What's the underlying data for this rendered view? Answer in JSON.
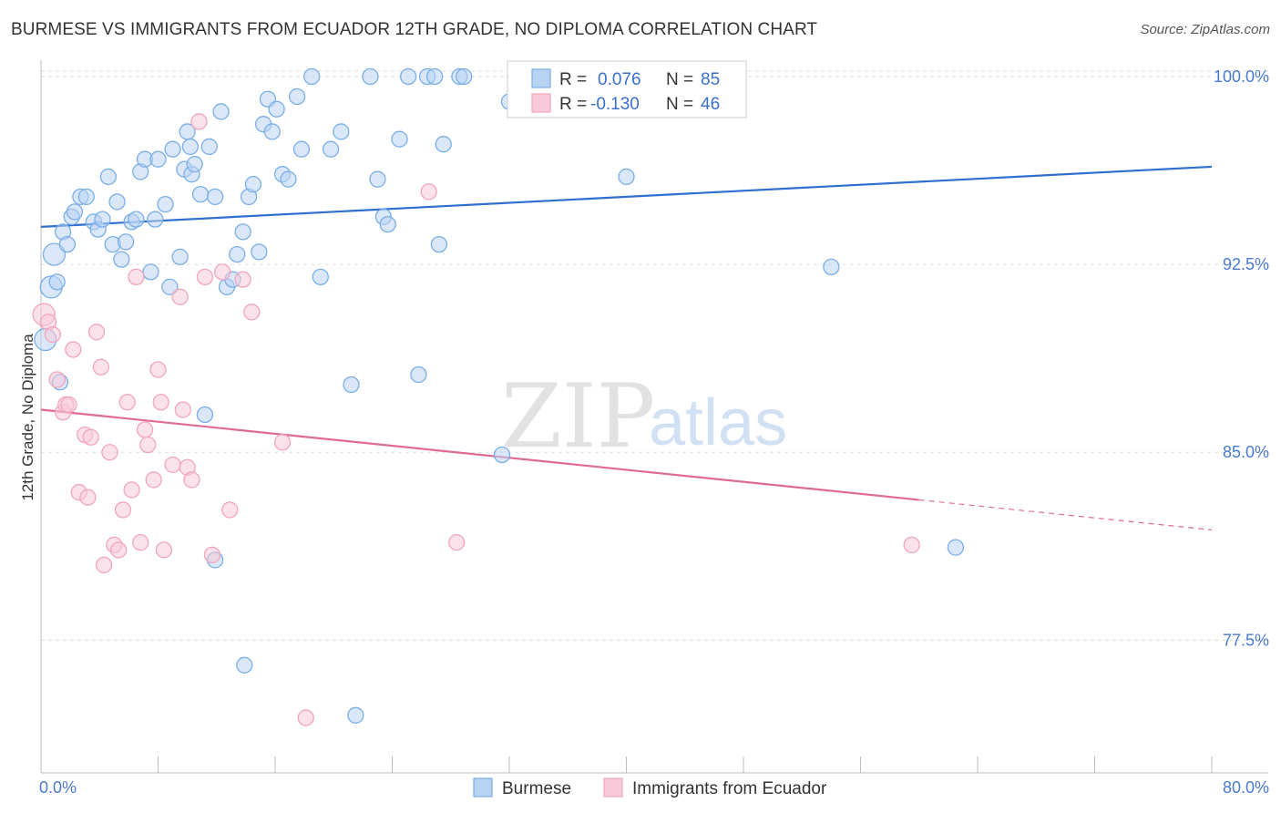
{
  "title": "BURMESE VS IMMIGRANTS FROM ECUADOR 12TH GRADE, NO DIPLOMA CORRELATION CHART",
  "source": "Source: ZipAtlas.com",
  "watermark": {
    "zip": "ZIP",
    "atlas": "atlas"
  },
  "colors": {
    "blue": "#7aaee6",
    "blue_fill": "#b9d3f2",
    "blue_line": "#2f6fcf",
    "pink": "#f0a5bd",
    "pink_fill": "#f8cad9",
    "pink_line": "#e06a94",
    "grid": "#dddddd",
    "axis_text": "#4a7bd0"
  },
  "legend": {
    "rows": [
      {
        "r_label": "R =",
        "r_value": "0.076",
        "n_label": "N =",
        "n_value": "85"
      },
      {
        "r_label": "R =",
        "r_value": "-0.130",
        "n_label": "N =",
        "n_value": "46"
      }
    ]
  },
  "bottom_legend": [
    "Burmese",
    "Immigrants from Ecuador"
  ],
  "chart_data": {
    "type": "scatter",
    "ylabel": "12th Grade, No Diploma",
    "xlabel": "",
    "x_tick_labels": [
      "0.0%",
      "80.0%"
    ],
    "y_tick_labels": [
      "100.0%",
      "92.5%",
      "85.0%",
      "77.5%"
    ],
    "y_ticks": [
      100.0,
      92.5,
      85.0,
      77.5
    ],
    "xlim": [
      0,
      80
    ],
    "ylim": [
      72.2,
      100.8
    ],
    "grid": true,
    "series": [
      {
        "name": "Burmese",
        "color": "blue",
        "trend": {
          "x0": 0,
          "y0": 94.0,
          "x1": 80,
          "y1": 96.4
        },
        "points": [
          [
            0.3,
            89.5
          ],
          [
            0.7,
            91.6
          ],
          [
            0.9,
            92.9
          ],
          [
            1.1,
            91.8
          ],
          [
            1.5,
            93.8
          ],
          [
            1.8,
            93.3
          ],
          [
            2.1,
            94.4
          ],
          [
            2.3,
            94.6
          ],
          [
            2.7,
            95.2
          ],
          [
            3.1,
            95.2
          ],
          [
            3.6,
            94.2
          ],
          [
            3.9,
            93.9
          ],
          [
            4.2,
            94.3
          ],
          [
            4.6,
            96.0
          ],
          [
            4.9,
            93.3
          ],
          [
            5.2,
            95.0
          ],
          [
            5.5,
            92.7
          ],
          [
            5.8,
            93.4
          ],
          [
            6.2,
            94.2
          ],
          [
            6.5,
            94.3
          ],
          [
            6.8,
            96.2
          ],
          [
            7.1,
            96.7
          ],
          [
            7.5,
            92.2
          ],
          [
            7.8,
            94.3
          ],
          [
            8.0,
            96.7
          ],
          [
            8.5,
            94.9
          ],
          [
            8.8,
            91.6
          ],
          [
            9.0,
            97.1
          ],
          [
            9.5,
            92.8
          ],
          [
            9.8,
            96.3
          ],
          [
            10.0,
            97.8
          ],
          [
            10.2,
            97.2
          ],
          [
            10.3,
            96.1
          ],
          [
            10.5,
            96.5
          ],
          [
            10.9,
            95.3
          ],
          [
            11.2,
            86.5
          ],
          [
            11.5,
            97.2
          ],
          [
            11.9,
            95.2
          ],
          [
            12.3,
            98.6
          ],
          [
            12.7,
            91.6
          ],
          [
            13.1,
            91.9
          ],
          [
            13.4,
            92.9
          ],
          [
            13.8,
            93.8
          ],
          [
            14.2,
            95.2
          ],
          [
            14.5,
            95.7
          ],
          [
            14.9,
            93.0
          ],
          [
            15.2,
            98.1
          ],
          [
            15.5,
            99.1
          ],
          [
            15.8,
            97.8
          ],
          [
            16.1,
            98.7
          ],
          [
            16.5,
            96.1
          ],
          [
            16.9,
            95.9
          ],
          [
            17.5,
            99.2
          ],
          [
            17.8,
            97.1
          ],
          [
            18.5,
            100.0
          ],
          [
            19.1,
            92.0
          ],
          [
            19.8,
            97.1
          ],
          [
            20.5,
            97.8
          ],
          [
            21.2,
            87.7
          ],
          [
            22.5,
            100.0
          ],
          [
            23.0,
            95.9
          ],
          [
            23.4,
            94.4
          ],
          [
            23.7,
            94.1
          ],
          [
            24.5,
            97.5
          ],
          [
            25.1,
            100.0
          ],
          [
            25.8,
            88.1
          ],
          [
            26.4,
            100.0
          ],
          [
            26.9,
            100.0
          ],
          [
            27.2,
            93.3
          ],
          [
            27.5,
            97.3
          ],
          [
            28.6,
            100.0
          ],
          [
            28.9,
            100.0
          ],
          [
            31.5,
            84.9
          ],
          [
            32.0,
            99.0
          ],
          [
            32.4,
            100.0
          ],
          [
            36.1,
            100.0
          ],
          [
            38.0,
            100.0
          ],
          [
            38.8,
            98.9
          ],
          [
            40.0,
            96.0
          ],
          [
            54.0,
            92.4
          ],
          [
            62.5,
            81.2
          ],
          [
            11.9,
            80.7
          ],
          [
            13.9,
            76.5
          ],
          [
            21.5,
            74.5
          ],
          [
            1.3,
            87.8
          ]
        ],
        "sizes_big": [
          [
            0.3,
            89.5
          ],
          [
            0.7,
            91.6
          ],
          [
            0.9,
            92.9
          ]
        ]
      },
      {
        "name": "Immigrants from Ecuador",
        "color": "pink",
        "trend": {
          "x0": 0,
          "y0": 86.7,
          "x1": 60,
          "y1": 83.1,
          "dash_x1": 80,
          "dash_y1": 81.9
        },
        "points": [
          [
            0.2,
            90.5
          ],
          [
            0.5,
            90.2
          ],
          [
            0.8,
            89.7
          ],
          [
            1.1,
            87.9
          ],
          [
            1.5,
            86.6
          ],
          [
            1.7,
            86.9
          ],
          [
            1.9,
            86.9
          ],
          [
            2.2,
            89.1
          ],
          [
            2.6,
            83.4
          ],
          [
            3.0,
            85.7
          ],
          [
            3.2,
            83.2
          ],
          [
            3.4,
            85.6
          ],
          [
            3.8,
            89.8
          ],
          [
            4.1,
            88.4
          ],
          [
            4.3,
            80.5
          ],
          [
            4.7,
            85.0
          ],
          [
            5.0,
            81.3
          ],
          [
            5.3,
            81.1
          ],
          [
            5.6,
            82.7
          ],
          [
            5.9,
            87.0
          ],
          [
            6.2,
            83.5
          ],
          [
            6.5,
            92.0
          ],
          [
            6.8,
            81.4
          ],
          [
            7.1,
            85.9
          ],
          [
            7.3,
            85.3
          ],
          [
            7.7,
            83.9
          ],
          [
            8.0,
            88.3
          ],
          [
            8.2,
            87.0
          ],
          [
            8.4,
            81.1
          ],
          [
            9.0,
            84.5
          ],
          [
            9.5,
            91.2
          ],
          [
            9.7,
            86.7
          ],
          [
            10.0,
            84.4
          ],
          [
            10.3,
            83.9
          ],
          [
            10.8,
            98.2
          ],
          [
            11.2,
            92.0
          ],
          [
            11.7,
            80.9
          ],
          [
            12.4,
            92.2
          ],
          [
            12.9,
            82.7
          ],
          [
            13.8,
            91.9
          ],
          [
            14.4,
            90.6
          ],
          [
            16.5,
            85.4
          ],
          [
            18.1,
            74.4
          ],
          [
            26.5,
            95.4
          ],
          [
            28.4,
            81.4
          ],
          [
            59.5,
            81.3
          ]
        ],
        "sizes_big": [
          [
            0.2,
            90.5
          ]
        ]
      }
    ]
  }
}
